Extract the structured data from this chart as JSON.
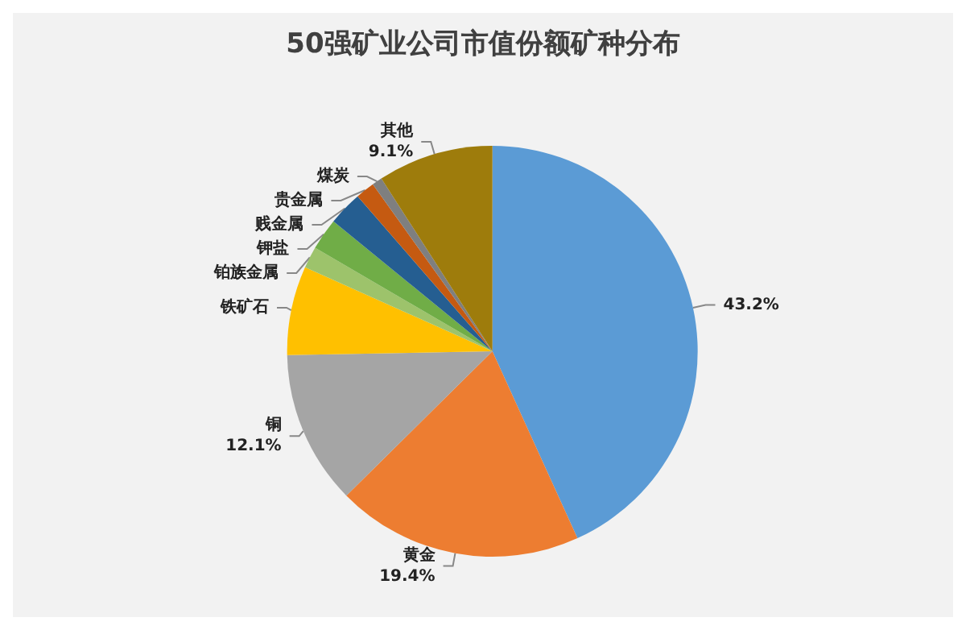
{
  "chart_data": {
    "type": "pie",
    "title": "50强矿业公司市值份额矿种分布",
    "categories": [
      null,
      "黄金",
      "铜",
      "铁矿石",
      "铂族金属",
      "钾盐",
      "贱金属",
      "贵金属",
      "煤炭",
      "其他"
    ],
    "values": [
      43.2,
      19.4,
      12.1,
      7.0,
      1.7,
      2.5,
      2.7,
      1.5,
      0.8,
      9.1
    ],
    "value_labels": [
      "43.2%",
      "19.4%",
      "12.1%",
      null,
      null,
      null,
      null,
      null,
      null,
      "9.1%"
    ],
    "colors": [
      "#5b9bd5",
      "#ed7d31",
      "#a5a5a5",
      "#ffc000",
      "#9dc36b",
      "#70ad47",
      "#255e91",
      "#c55a11",
      "#7f7f7f",
      "#9e7c0c"
    ],
    "legend": false
  }
}
